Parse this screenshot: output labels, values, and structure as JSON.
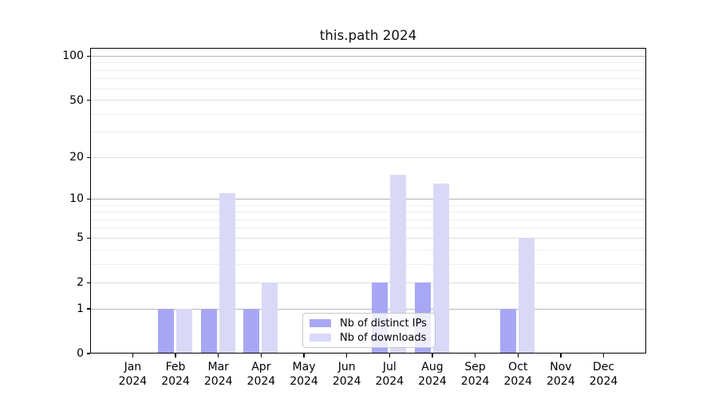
{
  "chart_data": {
    "type": "bar",
    "title": "this.path 2024",
    "categories": [
      "Jan 2024",
      "Feb 2024",
      "Mar 2024",
      "Apr 2024",
      "May 2024",
      "Jun 2024",
      "Jul 2024",
      "Aug 2024",
      "Sep 2024",
      "Oct 2024",
      "Nov 2024",
      "Dec 2024"
    ],
    "series": [
      {
        "name": "Nb of distinct IPs",
        "color": "#a7a7f5",
        "values": [
          0,
          1,
          1,
          1,
          0,
          0,
          2,
          2,
          0,
          1,
          0,
          0
        ]
      },
      {
        "name": "Nb of downloads",
        "color": "#d9d9f7",
        "values": [
          0,
          1,
          11,
          2,
          0,
          0,
          15,
          13,
          0,
          5,
          0,
          0
        ]
      }
    ],
    "yscale": "log1p",
    "ylim": [
      0,
      114
    ],
    "yticks_labeled": [
      0,
      1,
      2,
      5,
      10,
      20,
      50,
      100
    ],
    "yticks_major_grid": [
      1,
      10,
      100
    ],
    "yticks_mid_grid": [
      2,
      5,
      20,
      50
    ],
    "yticks_minor_grid": [
      3,
      4,
      6,
      7,
      8,
      9,
      30,
      40,
      60,
      70,
      80,
      90
    ],
    "grid": "horizontal",
    "legend_position": "lower-center-inside",
    "colors": {
      "grid_major": "#b5b5b5",
      "grid_mid": "#dedede",
      "grid_minor": "#eeeeee",
      "axis": "#000000",
      "background": "#ffffff"
    }
  }
}
